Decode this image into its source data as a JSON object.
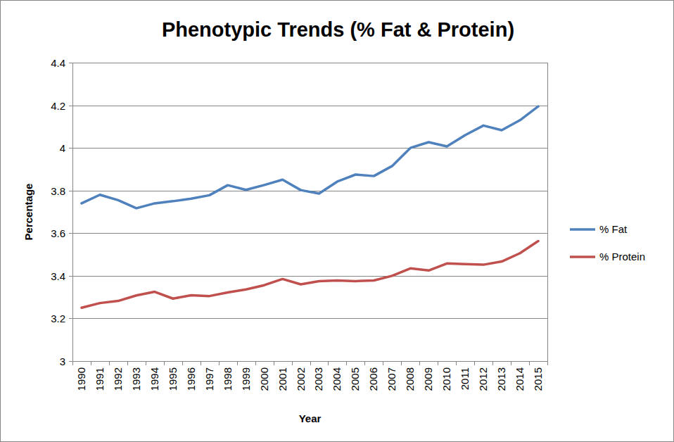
{
  "chart_data": {
    "type": "line",
    "title": "Phenotypic Trends (% Fat & Protein)",
    "x_label": "Year",
    "y_label": "Percentage",
    "categories": [
      "1990",
      "1991",
      "1992",
      "1993",
      "1994",
      "1995",
      "1996",
      "1997",
      "1998",
      "1999",
      "2000",
      "2001",
      "2002",
      "2003",
      "2004",
      "2005",
      "2006",
      "2007",
      "2008",
      "2009",
      "2010",
      "2011",
      "2012",
      "2013",
      "2014",
      "2015"
    ],
    "series": [
      {
        "name": "% Fat",
        "color": "#4f81bd",
        "values": [
          3.74,
          3.78,
          3.755,
          3.717,
          3.74,
          3.75,
          3.762,
          3.778,
          3.825,
          3.803,
          3.826,
          3.851,
          3.802,
          3.786,
          3.842,
          3.875,
          3.868,
          3.915,
          4.0,
          4.027,
          4.007,
          4.06,
          4.105,
          4.083,
          4.13,
          4.195
        ]
      },
      {
        "name": "% Protein",
        "color": "#c0504d",
        "values": [
          3.25,
          3.272,
          3.282,
          3.308,
          3.325,
          3.293,
          3.309,
          3.305,
          3.322,
          3.336,
          3.356,
          3.385,
          3.36,
          3.375,
          3.378,
          3.375,
          3.378,
          3.4,
          3.435,
          3.425,
          3.458,
          3.455,
          3.452,
          3.467,
          3.506,
          3.563
        ]
      }
    ],
    "ylim": [
      3,
      4.4
    ],
    "yticks": [
      3,
      3.2,
      3.4,
      3.6,
      3.8,
      4,
      4.2,
      4.4
    ],
    "grid": true,
    "legend": "right"
  }
}
